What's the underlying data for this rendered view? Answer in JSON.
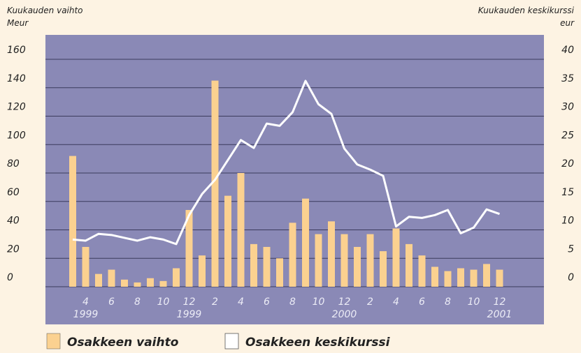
{
  "chart_data": {
    "type": "bar",
    "y_label": "Kuukauden vaihto",
    "y_unit": "Meur",
    "y2_label": "Kuukauden keskikurssi",
    "y2_unit": "eur",
    "categories": [
      null,
      "4",
      null,
      "6",
      null,
      "8",
      null,
      "10",
      null,
      "12",
      null,
      "2",
      null,
      "4",
      null,
      "6",
      null,
      "8",
      null,
      "10",
      null,
      "12",
      null,
      "2",
      null,
      "4",
      null,
      "6",
      null,
      "8",
      null,
      "10",
      null,
      "12"
    ],
    "category_years": [
      null,
      "1999",
      null,
      null,
      null,
      null,
      null,
      null,
      null,
      "1999",
      null,
      null,
      null,
      null,
      null,
      null,
      null,
      null,
      null,
      null,
      null,
      "2000",
      null,
      null,
      null,
      null,
      null,
      null,
      null,
      null,
      null,
      null,
      null,
      "2001"
    ],
    "series": [
      {
        "name": "Osakkeen vaihto",
        "type": "bar",
        "color": "#fbd190",
        "values": [
          92,
          28,
          9,
          12,
          5,
          3,
          6,
          4,
          13,
          54,
          22,
          145,
          64,
          80,
          30,
          28,
          20,
          45,
          62,
          37,
          46,
          37,
          28,
          37,
          25,
          41,
          30,
          22,
          14,
          11,
          13,
          12,
          16,
          12
        ]
      },
      {
        "name": "Osakkeen keskikurssi",
        "type": "line",
        "axis": "y2",
        "color": "#ffffff",
        "values": [
          8.3,
          8.1,
          9.3,
          9.1,
          8.6,
          8.1,
          8.7,
          8.3,
          7.5,
          12.6,
          16.3,
          18.8,
          22.3,
          25.8,
          24.4,
          28.7,
          28.3,
          30.7,
          36.2,
          32.1,
          30.4,
          24.3,
          21.5,
          20.6,
          19.5,
          10.6,
          12.3,
          12.1,
          12.6,
          13.5,
          9.4,
          10.4,
          13.6,
          12.8
        ]
      }
    ],
    "ylim": [
      0,
      160
    ],
    "yticks": [
      0,
      20,
      40,
      60,
      80,
      100,
      120,
      140,
      160
    ],
    "y2lim": [
      0,
      40
    ],
    "y2ticks": [
      0,
      5,
      10,
      15,
      20,
      25,
      30,
      35,
      40
    ],
    "grid": true,
    "background": "#8a89b6"
  }
}
